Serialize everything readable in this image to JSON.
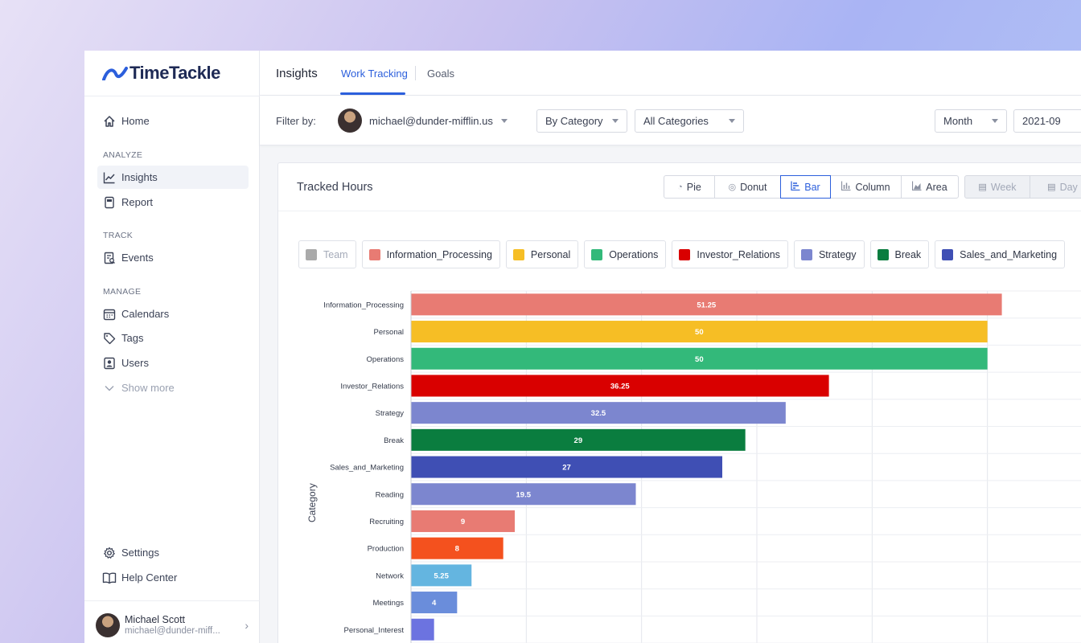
{
  "app": {
    "name": "TimeTackle"
  },
  "sidebar": {
    "items_top": [
      {
        "label": "Home",
        "icon": "home-icon"
      }
    ],
    "sections": [
      {
        "title": "ANALYZE",
        "items": [
          {
            "label": "Insights",
            "icon": "trend-icon",
            "active": true
          },
          {
            "label": "Report",
            "icon": "report-icon"
          }
        ]
      },
      {
        "title": "TRACK",
        "items": [
          {
            "label": "Events",
            "icon": "events-icon"
          }
        ]
      },
      {
        "title": "MANAGE",
        "items": [
          {
            "label": "Calendars",
            "icon": "calendar-icon"
          },
          {
            "label": "Tags",
            "icon": "tag-icon"
          },
          {
            "label": "Users",
            "icon": "users-icon"
          },
          {
            "label": "Show more",
            "icon": "chevron-down-icon"
          }
        ]
      }
    ],
    "bottom": [
      {
        "label": "Settings",
        "icon": "gear-icon"
      },
      {
        "label": "Help Center",
        "icon": "book-icon"
      }
    ],
    "user": {
      "name": "Michael Scott",
      "email": "michael@dunder-miff..."
    }
  },
  "topbar": {
    "title": "Insights",
    "tabs": [
      {
        "label": "Work Tracking",
        "active": true
      },
      {
        "label": "Goals"
      }
    ]
  },
  "filters": {
    "label": "Filter by:",
    "user_email": "michael@dunder-mifflin.us",
    "group_by": "By Category",
    "categories": "All Categories",
    "period": "Month",
    "date": "2021-09"
  },
  "card": {
    "title": "Tracked Hours",
    "chart_types": [
      {
        "label": "Pie",
        "icon": "pie-icon"
      },
      {
        "label": "Donut",
        "icon": "donut-icon"
      },
      {
        "label": "Bar",
        "icon": "bar-icon",
        "active": true
      },
      {
        "label": "Column",
        "icon": "column-icon"
      },
      {
        "label": "Area",
        "icon": "area-icon"
      }
    ],
    "granularity": [
      {
        "label": "Week",
        "icon": "calendar-icon"
      },
      {
        "label": "Day",
        "icon": "calendar-icon"
      }
    ],
    "legend": [
      {
        "label": "Team",
        "color": "#aaaaaa",
        "off": true
      },
      {
        "label": "Information_Processing",
        "color": "#e87b73"
      },
      {
        "label": "Personal",
        "color": "#f6be25"
      },
      {
        "label": "Operations",
        "color": "#33b97a"
      },
      {
        "label": "Investor_Relations",
        "color": "#d90000"
      },
      {
        "label": "Strategy",
        "color": "#7c86cf"
      },
      {
        "label": "Break",
        "color": "#0a7d3f"
      },
      {
        "label": "Sales_and_Marketing",
        "color": "#3f4fb4"
      }
    ]
  },
  "chart_data": {
    "type": "bar",
    "orientation": "horizontal",
    "ylabel": "Category",
    "categories": [
      "Information_Processing",
      "Personal",
      "Operations",
      "Investor_Relations",
      "Strategy",
      "Break",
      "Sales_and_Marketing",
      "Reading",
      "Recruiting",
      "Production",
      "Network",
      "Meetings",
      "Personal_Interest"
    ],
    "values": [
      51.25,
      50,
      50,
      36.25,
      32.5,
      29,
      27,
      19.5,
      9,
      8,
      5.25,
      4,
      2
    ],
    "labels": [
      "51.25",
      "50",
      "50",
      "36.25",
      "32.5",
      "29",
      "27",
      "19.5",
      "9",
      "8",
      "5.25",
      "4",
      ""
    ],
    "colors": [
      "#e87b73",
      "#f6be25",
      "#33b97a",
      "#d90000",
      "#7c86cf",
      "#0a7d3f",
      "#3f4fb4",
      "#7c86cf",
      "#e87b73",
      "#f4511e",
      "#64b5e0",
      "#6a8ddb",
      "#6c73e0"
    ],
    "xlim": [
      0,
      60
    ],
    "grid": true
  }
}
